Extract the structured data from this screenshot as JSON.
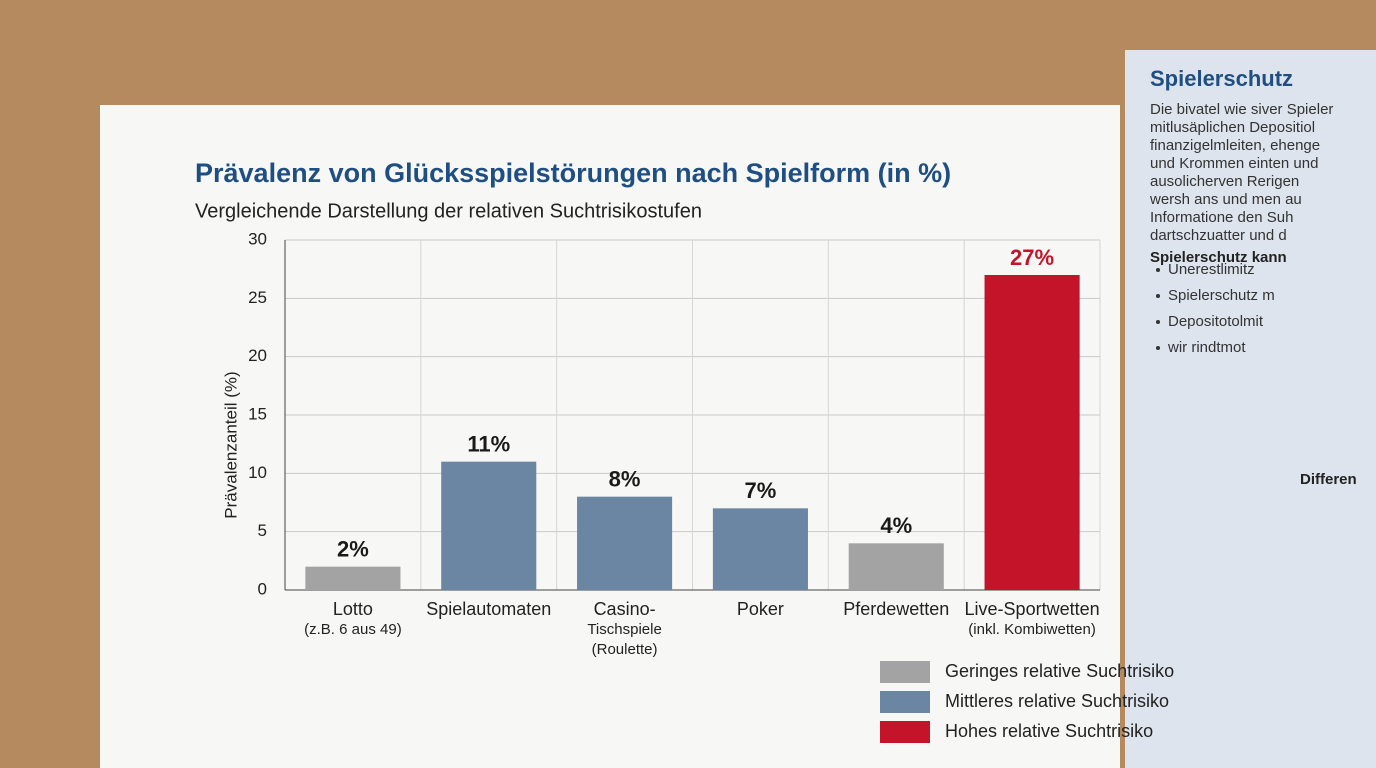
{
  "chart_data": {
    "type": "bar",
    "title": "Prävalenz von Glücksspielstörungen nach Spielform (in %)",
    "subtitle": "Vergleichende Darstellung der relativen Suchtrisikostufen",
    "y_label": "Prävalenzanteil (%)",
    "categories": [
      [
        "Lotto",
        "(z.B. 6 aus 49)"
      ],
      [
        "Spielautomaten"
      ],
      [
        "Casino-",
        "Tischspiele",
        "(Roulette)"
      ],
      [
        "Poker"
      ],
      [
        "Pferdewetten"
      ],
      [
        "Live-Sportwetten",
        "(inkl. Kombiwetten)"
      ]
    ],
    "values": [
      2,
      11,
      8,
      7,
      4,
      27
    ],
    "value_labels": [
      "2%",
      "11%",
      "8%",
      "7%",
      "4%",
      "27%"
    ],
    "colors": [
      "#a3a3a3",
      "#6b86a3",
      "#6b86a3",
      "#6b86a3",
      "#a3a3a3",
      "#c4142a"
    ],
    "value_label_colors": [
      "#1a1a1a",
      "#1a1a1a",
      "#1a1a1a",
      "#1a1a1a",
      "#1a1a1a",
      "#c4142a"
    ],
    "ylim": [
      0,
      30
    ],
    "yticks": [
      0,
      5,
      10,
      15,
      20,
      25,
      30
    ],
    "grid": true,
    "legend": [
      {
        "name": "Geringes relative Suchtrisiko",
        "color": "#a3a3a3"
      },
      {
        "name": "Mittleres relative Suchtrisiko",
        "color": "#6b86a3"
      },
      {
        "name": "Hohes relative Suchtrisiko",
        "color": "#c4142a"
      }
    ]
  },
  "sidebar": {
    "title": "Spielerschutz",
    "lines": [
      "Die bivatel wie siver Spieler",
      "mitlusäplichen Depositiol",
      "finanzigelmleiten, ehenge",
      "und Krommen einten und",
      "ausolicherven Rerigen",
      "wersh ans und men au",
      "Informatione den Suh",
      "dartschzuatter und d"
    ],
    "subtitle": "Spielerschutz kann",
    "bullets": [
      "Unerestlimitz",
      "Spielerschutz m",
      "Depositotolmit",
      "wir rindtmot"
    ],
    "section": "Differen"
  }
}
